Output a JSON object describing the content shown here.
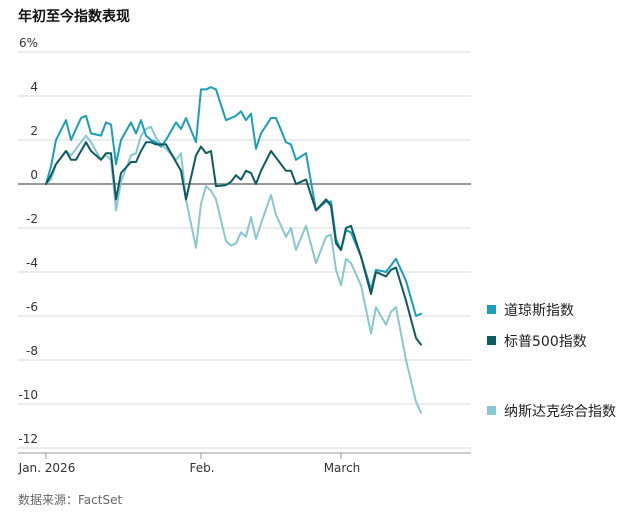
{
  "title": "年初至今指数表现",
  "source": "数据来源：FactSet",
  "chart_data": {
    "type": "line",
    "title": "年初至今指数表现",
    "y_unit": "%",
    "ylim": [
      -12,
      6
    ],
    "yticks": [
      6,
      4,
      2,
      0,
      -2,
      -4,
      -6,
      -8,
      -10,
      -12
    ],
    "xlim": [
      "2026-01-01",
      "2026-03-27"
    ],
    "xticks": [
      {
        "label": "Jan. 2026",
        "date": "2026-01-01"
      },
      {
        "label": "Feb.",
        "date": "2026-02-01"
      },
      {
        "label": "March",
        "date": "2026-03-01"
      }
    ],
    "grid": "horizontal",
    "legend": "right",
    "series": [
      {
        "name": "道琼斯指数",
        "color": "#1a9fb8",
        "points": [
          [
            "2026-01-01",
            0.0
          ],
          [
            "2026-01-02",
            0.8
          ],
          [
            "2026-01-03",
            2.0
          ],
          [
            "2026-01-05",
            2.9
          ],
          [
            "2026-01-06",
            2.0
          ],
          [
            "2026-01-07",
            2.5
          ],
          [
            "2026-01-08",
            3.0
          ],
          [
            "2026-01-09",
            3.1
          ],
          [
            "2026-01-10",
            2.3
          ],
          [
            "2026-01-12",
            2.2
          ],
          [
            "2026-01-13",
            2.8
          ],
          [
            "2026-01-14",
            2.7
          ],
          [
            "2026-01-15",
            0.9
          ],
          [
            "2026-01-16",
            2.0
          ],
          [
            "2026-01-18",
            2.8
          ],
          [
            "2026-01-19",
            2.3
          ],
          [
            "2026-01-20",
            2.9
          ],
          [
            "2026-01-21",
            2.2
          ],
          [
            "2026-01-22",
            2.0
          ],
          [
            "2026-01-23",
            1.9
          ],
          [
            "2026-01-24",
            1.7
          ],
          [
            "2026-01-25",
            2.0
          ],
          [
            "2026-01-27",
            2.8
          ],
          [
            "2026-01-28",
            2.5
          ],
          [
            "2026-01-29",
            3.0
          ],
          [
            "2026-01-31",
            1.9
          ],
          [
            "2026-02-01",
            4.3
          ],
          [
            "2026-02-02",
            4.3
          ],
          [
            "2026-02-03",
            4.4
          ],
          [
            "2026-02-04",
            4.3
          ],
          [
            "2026-02-06",
            2.9
          ],
          [
            "2026-02-07",
            3.0
          ],
          [
            "2026-02-08",
            3.1
          ],
          [
            "2026-02-09",
            3.3
          ],
          [
            "2026-02-10",
            2.9
          ],
          [
            "2026-02-11",
            3.2
          ],
          [
            "2026-02-12",
            1.6
          ],
          [
            "2026-02-13",
            2.3
          ],
          [
            "2026-02-15",
            3.0
          ],
          [
            "2026-02-16",
            3.0
          ],
          [
            "2026-02-18",
            1.9
          ],
          [
            "2026-02-19",
            1.8
          ],
          [
            "2026-02-20",
            1.1
          ],
          [
            "2026-02-22",
            1.4
          ],
          [
            "2026-02-24",
            -1.2
          ],
          [
            "2026-02-26",
            -0.8
          ],
          [
            "2026-02-27",
            -0.8
          ],
          [
            "2026-02-28",
            -2.5
          ],
          [
            "2026-03-01",
            -3.0
          ],
          [
            "2026-03-02",
            -2.1
          ],
          [
            "2026-03-03",
            -2.2
          ],
          [
            "2026-03-05",
            -3.3
          ],
          [
            "2026-03-07",
            -4.8
          ],
          [
            "2026-03-08",
            -3.9
          ],
          [
            "2026-03-10",
            -4.0
          ],
          [
            "2026-03-11",
            -3.7
          ],
          [
            "2026-03-12",
            -3.4
          ],
          [
            "2026-03-14",
            -4.4
          ],
          [
            "2026-03-16",
            -6.0
          ],
          [
            "2026-03-17",
            -5.9
          ]
        ]
      },
      {
        "name": "标普500指数",
        "color": "#0d5b61",
        "points": [
          [
            "2026-01-01",
            0.0
          ],
          [
            "2026-01-02",
            0.4
          ],
          [
            "2026-01-03",
            0.9
          ],
          [
            "2026-01-05",
            1.5
          ],
          [
            "2026-01-06",
            1.1
          ],
          [
            "2026-01-07",
            1.1
          ],
          [
            "2026-01-08",
            1.5
          ],
          [
            "2026-01-09",
            1.9
          ],
          [
            "2026-01-10",
            1.5
          ],
          [
            "2026-01-12",
            1.1
          ],
          [
            "2026-01-13",
            1.4
          ],
          [
            "2026-01-14",
            1.4
          ],
          [
            "2026-01-15",
            -0.7
          ],
          [
            "2026-01-16",
            0.5
          ],
          [
            "2026-01-18",
            1.0
          ],
          [
            "2026-01-19",
            1.0
          ],
          [
            "2026-01-20",
            1.5
          ],
          [
            "2026-01-21",
            1.9
          ],
          [
            "2026-01-22",
            1.9
          ],
          [
            "2026-01-23",
            1.8
          ],
          [
            "2026-01-24",
            1.8
          ],
          [
            "2026-01-25",
            1.8
          ],
          [
            "2026-01-27",
            1.0
          ],
          [
            "2026-01-28",
            0.6
          ],
          [
            "2026-01-29",
            -0.7
          ],
          [
            "2026-01-31",
            1.3
          ],
          [
            "2026-02-01",
            1.7
          ],
          [
            "2026-02-02",
            1.4
          ],
          [
            "2026-02-03",
            1.5
          ],
          [
            "2026-02-04",
            -0.1
          ],
          [
            "2026-02-06",
            -0.05
          ],
          [
            "2026-02-07",
            0.1
          ],
          [
            "2026-02-08",
            0.4
          ],
          [
            "2026-02-09",
            0.2
          ],
          [
            "2026-02-10",
            0.6
          ],
          [
            "2026-02-11",
            0.5
          ],
          [
            "2026-02-12",
            0.0
          ],
          [
            "2026-02-13",
            0.6
          ],
          [
            "2026-02-15",
            1.5
          ],
          [
            "2026-02-16",
            1.2
          ],
          [
            "2026-02-18",
            0.6
          ],
          [
            "2026-02-19",
            0.6
          ],
          [
            "2026-02-20",
            0.0
          ],
          [
            "2026-02-22",
            0.2
          ],
          [
            "2026-02-24",
            -1.2
          ],
          [
            "2026-02-26",
            -0.7
          ],
          [
            "2026-02-27",
            -1.0
          ],
          [
            "2026-02-28",
            -2.7
          ],
          [
            "2026-03-01",
            -3.0
          ],
          [
            "2026-03-02",
            -2.0
          ],
          [
            "2026-03-03",
            -1.9
          ],
          [
            "2026-03-05",
            -3.3
          ],
          [
            "2026-03-07",
            -5.0
          ],
          [
            "2026-03-08",
            -4.0
          ],
          [
            "2026-03-10",
            -4.2
          ],
          [
            "2026-03-11",
            -3.9
          ],
          [
            "2026-03-12",
            -3.8
          ],
          [
            "2026-03-14",
            -5.3
          ],
          [
            "2026-03-16",
            -7.0
          ],
          [
            "2026-03-17",
            -7.3
          ]
        ]
      },
      {
        "name": "纳斯达克综合指数",
        "color": "#89c7d1",
        "points": [
          [
            "2026-01-01",
            0.0
          ],
          [
            "2026-01-02",
            0.2
          ],
          [
            "2026-01-03",
            0.9
          ],
          [
            "2026-01-05",
            1.5
          ],
          [
            "2026-01-06",
            1.3
          ],
          [
            "2026-01-07",
            1.6
          ],
          [
            "2026-01-08",
            1.9
          ],
          [
            "2026-01-09",
            2.2
          ],
          [
            "2026-01-10",
            1.9
          ],
          [
            "2026-01-12",
            1.1
          ],
          [
            "2026-01-13",
            1.3
          ],
          [
            "2026-01-14",
            1.1
          ],
          [
            "2026-01-15",
            -1.2
          ],
          [
            "2026-01-16",
            0.1
          ],
          [
            "2026-01-18",
            1.3
          ],
          [
            "2026-01-19",
            1.4
          ],
          [
            "2026-01-20",
            2.2
          ],
          [
            "2026-01-21",
            2.5
          ],
          [
            "2026-01-22",
            2.6
          ],
          [
            "2026-01-23",
            2.1
          ],
          [
            "2026-01-24",
            1.8
          ],
          [
            "2026-01-25",
            1.6
          ],
          [
            "2026-01-27",
            1.1
          ],
          [
            "2026-01-28",
            1.4
          ],
          [
            "2026-01-29",
            -0.7
          ],
          [
            "2026-01-31",
            -2.9
          ],
          [
            "2026-02-01",
            -0.9
          ],
          [
            "2026-02-02",
            -0.1
          ],
          [
            "2026-02-03",
            -0.3
          ],
          [
            "2026-02-04",
            -0.7
          ],
          [
            "2026-02-06",
            -2.6
          ],
          [
            "2026-02-07",
            -2.8
          ],
          [
            "2026-02-08",
            -2.7
          ],
          [
            "2026-02-09",
            -2.2
          ],
          [
            "2026-02-10",
            -2.4
          ],
          [
            "2026-02-11",
            -1.5
          ],
          [
            "2026-02-12",
            -2.5
          ],
          [
            "2026-02-13",
            -1.8
          ],
          [
            "2026-02-15",
            -0.5
          ],
          [
            "2026-02-16",
            -1.4
          ],
          [
            "2026-02-18",
            -2.4
          ],
          [
            "2026-02-19",
            -2.0
          ],
          [
            "2026-02-20",
            -3.0
          ],
          [
            "2026-02-22",
            -1.9
          ],
          [
            "2026-02-24",
            -3.6
          ],
          [
            "2026-02-26",
            -2.4
          ],
          [
            "2026-02-27",
            -2.3
          ],
          [
            "2026-02-28",
            -3.9
          ],
          [
            "2026-03-01",
            -4.6
          ],
          [
            "2026-03-02",
            -3.4
          ],
          [
            "2026-03-03",
            -3.6
          ],
          [
            "2026-03-05",
            -4.6
          ],
          [
            "2026-03-07",
            -6.8
          ],
          [
            "2026-03-08",
            -5.6
          ],
          [
            "2026-03-10",
            -6.4
          ],
          [
            "2026-03-11",
            -5.8
          ],
          [
            "2026-03-12",
            -5.6
          ],
          [
            "2026-03-14",
            -8.0
          ],
          [
            "2026-03-16",
            -9.9
          ],
          [
            "2026-03-17",
            -10.4
          ]
        ]
      }
    ]
  }
}
